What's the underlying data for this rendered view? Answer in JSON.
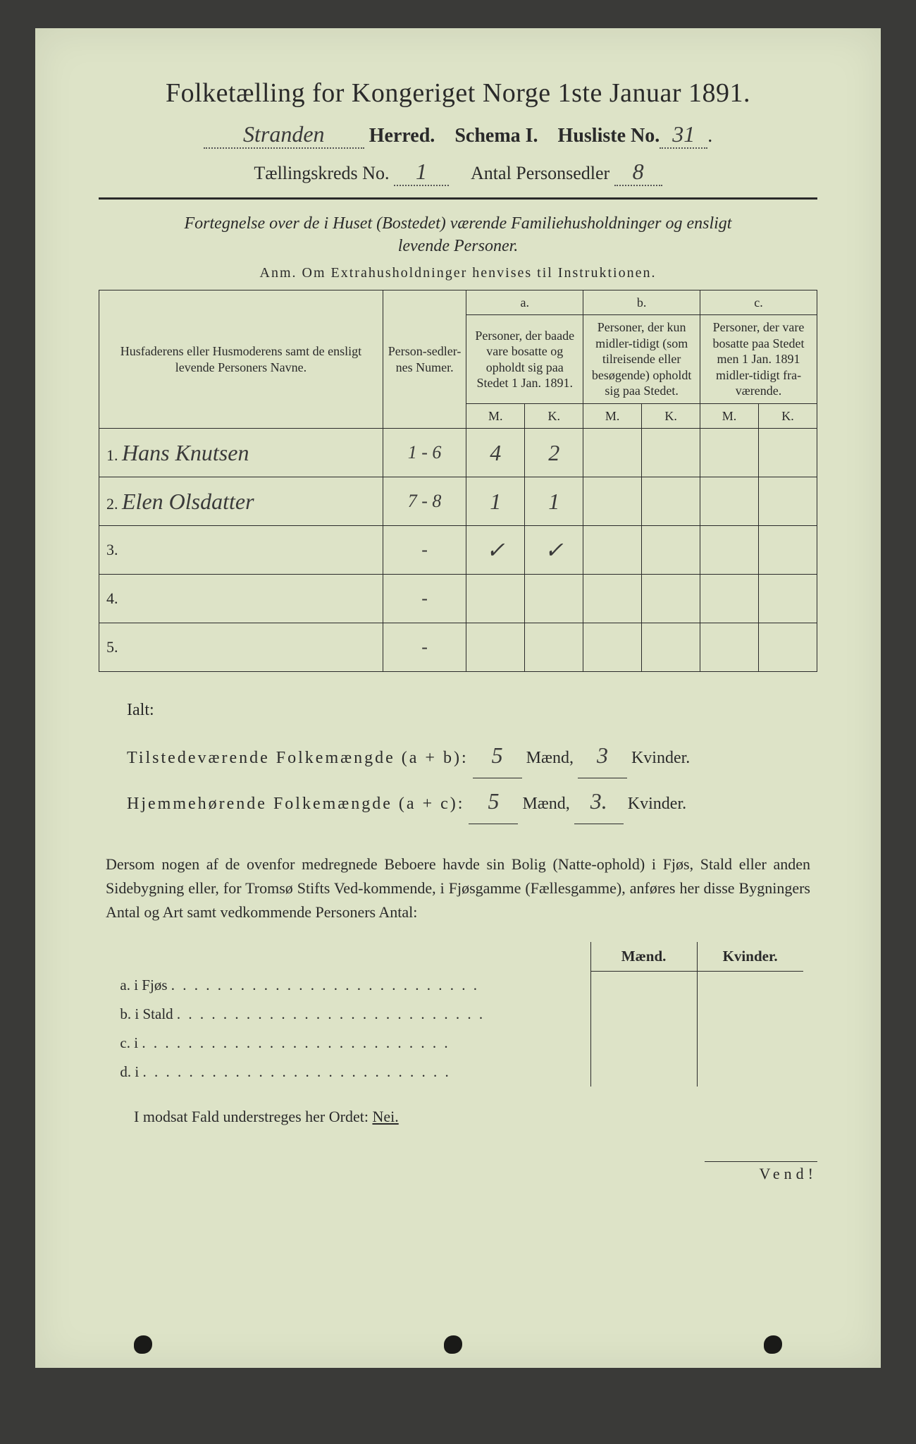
{
  "header": {
    "title": "Folketælling for Kongeriget Norge 1ste Januar 1891.",
    "herred_hand": "Stranden",
    "herred_label": "Herred.",
    "schema_label": "Schema I.",
    "husliste_label": "Husliste No.",
    "husliste_hand": "31",
    "kreds_label": "Tællingskreds No.",
    "kreds_hand": "1",
    "antal_label": "Antal Personsedler",
    "antal_hand": "8"
  },
  "subtitle": {
    "line1": "Fortegnelse over de i Huset (Bostedet) værende Familiehusholdninger og ensligt",
    "line2": "levende Personer.",
    "anm": "Anm.  Om Extrahusholdninger henvises til Instruktionen."
  },
  "table": {
    "colheads": {
      "names": "Husfaderens eller Husmoderens samt de ensligt levende Personers Navne.",
      "numer": "Person-sedler-nes Numer.",
      "a_label": "a.",
      "a_text": "Personer, der baade vare bosatte og opholdt sig paa Stedet 1 Jan. 1891.",
      "b_label": "b.",
      "b_text": "Personer, der kun midler-tidigt (som tilreisende eller besøgende) opholdt sig paa Stedet.",
      "c_label": "c.",
      "c_text": "Personer, der vare bosatte paa Stedet men 1 Jan. 1891 midler-tidigt fra-værende.",
      "M": "M.",
      "K": "K."
    },
    "rows": [
      {
        "n": "1.",
        "name": "Hans Knutsen",
        "numer": "1 - 6",
        "aM": "4",
        "aK": "2",
        "bM": "",
        "bK": "",
        "cM": "",
        "cK": ""
      },
      {
        "n": "2.",
        "name": "Elen Olsdatter",
        "numer": "7 - 8",
        "aM": "1",
        "aK": "1",
        "bM": "",
        "bK": "",
        "cM": "",
        "cK": ""
      },
      {
        "n": "3.",
        "name": "",
        "numer": "-",
        "aM": "✓",
        "aK": "✓",
        "bM": "",
        "bK": "",
        "cM": "",
        "cK": ""
      },
      {
        "n": "4.",
        "name": "",
        "numer": "-",
        "aM": "",
        "aK": "",
        "bM": "",
        "bK": "",
        "cM": "",
        "cK": ""
      },
      {
        "n": "5.",
        "name": "",
        "numer": "-",
        "aM": "",
        "aK": "",
        "bM": "",
        "bK": "",
        "cM": "",
        "cK": ""
      }
    ]
  },
  "ialt": {
    "label": "Ialt:",
    "line1_a": "Tilstedeværende Folkemængde (a + b):",
    "line1_m": "5",
    "line1_k": "3",
    "line2_a": "Hjemmehørende Folkemængde (a + c):",
    "line2_m": "5",
    "line2_k": "3.",
    "maend": "Mænd,",
    "kvinder": "Kvinder."
  },
  "para": "Dersom nogen af de ovenfor medregnede Beboere havde sin Bolig (Natte-ophold) i Fjøs, Stald eller anden Sidebygning eller, for Tromsø Stifts Ved-kommende, i Fjøsgamme (Fællesgamme), anføres her disse Bygningers Antal og Art samt vedkommende Personers Antal:",
  "fjos": {
    "maend": "Mænd.",
    "kvinder": "Kvinder.",
    "rows": [
      {
        "label": "a.  i     Fjøs",
        "m": "",
        "k": ""
      },
      {
        "label": "b.  i     Stald",
        "m": "",
        "k": ""
      },
      {
        "label": "c.  i",
        "m": "",
        "k": ""
      },
      {
        "label": "d.  i",
        "m": "",
        "k": ""
      }
    ]
  },
  "nei": {
    "text": "I modsat Fald understreges her Ordet:",
    "word": "Nei."
  },
  "vend": "Vend!",
  "style": {
    "page_bg": "#dde3c7",
    "outer_bg": "#3a3a38",
    "ink": "#2a2a2a",
    "hand_ink": "#3a3a3a",
    "title_fontsize": 38,
    "body_fontsize": 22
  }
}
